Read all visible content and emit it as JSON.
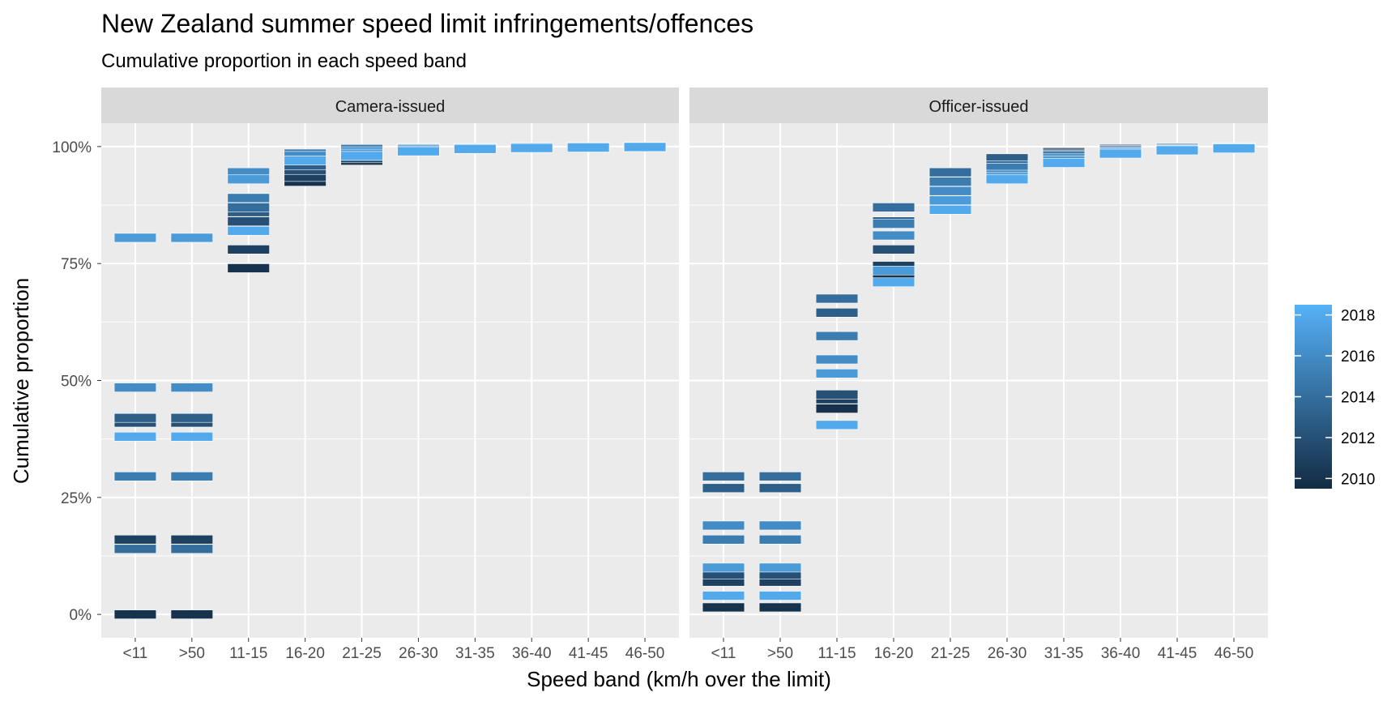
{
  "chart_data": {
    "type": "heatmap",
    "title": "New Zealand summer speed limit infringements/offences",
    "subtitle": "Cumulative proportion in each speed band",
    "xlabel": "Speed band (km/h over the limit)",
    "ylabel": "Cumulative proportion",
    "categories": [
      "<11",
      ">50",
      "11-15",
      "16-20",
      "21-25",
      "26-30",
      "31-35",
      "36-40",
      "41-45",
      "46-50"
    ],
    "y_ticks": [
      0,
      25,
      50,
      75,
      100
    ],
    "y_tick_labels": [
      "0%",
      "25%",
      "50%",
      "75%",
      "100%"
    ],
    "ylim": [
      -5,
      105
    ],
    "grid": true,
    "legend": {
      "position": "right",
      "title": "",
      "type": "colorbar",
      "min": 2009.5,
      "max": 2018.5,
      "ticks": [
        2010,
        2012,
        2014,
        2016,
        2018
      ],
      "low_color": "#132B43",
      "high_color": "#56B1F7"
    },
    "panels": [
      {
        "strip": "Camera-issued",
        "years": [
          2010,
          2011,
          2012,
          2013,
          2014,
          2015,
          2016,
          2017,
          2018
        ],
        "values": {
          "<11": [
            0,
            16,
            41,
            42,
            14,
            29.5,
            48.5,
            80.5,
            38
          ],
          ">50": [
            0,
            16,
            41,
            42,
            14,
            29.5,
            48.5,
            80.5,
            38
          ],
          "11-15": [
            74,
            78,
            84,
            86,
            87,
            89,
            94.5,
            93,
            82
          ],
          "16-20": [
            92.5,
            93.5,
            95,
            96,
            97,
            98.5,
            98,
            97,
            97
          ],
          "21-25": [
            97,
            97.5,
            98,
            99,
            99.5,
            99.5,
            99,
            98.5,
            98
          ],
          "26-30": [
            99,
            99.2,
            99.5,
            99.7,
            99.7,
            99.6,
            99.5,
            99.2,
            99
          ],
          "31-35": [
            99.6,
            99.6,
            99.7,
            99.8,
            99.8,
            99.8,
            99.7,
            99.6,
            99.5
          ],
          "36-40": [
            99.8,
            99.8,
            99.8,
            99.9,
            99.9,
            99.9,
            99.8,
            99.8,
            99.7
          ],
          "41-45": [
            99.9,
            99.9,
            99.9,
            99.9,
            99.9,
            99.9,
            99.9,
            99.9,
            99.8
          ],
          "46-50": [
            99.9,
            99.9,
            99.9,
            99.9,
            100,
            100,
            99.9,
            99.9,
            99.9
          ]
        }
      },
      {
        "strip": "Officer-issued",
        "years": [
          2010,
          2011,
          2012,
          2013,
          2014,
          2015,
          2016,
          2017,
          2018
        ],
        "values": {
          "<11": [
            1.5,
            7,
            8.5,
            27,
            29.5,
            16,
            19,
            10,
            4
          ],
          ">50": [
            1.5,
            7,
            8.5,
            27,
            29.5,
            16,
            19,
            10,
            4
          ],
          "11-15": [
            44,
            46,
            47,
            64.5,
            67.5,
            59.5,
            54.5,
            51.5,
            40.5
          ],
          "16-20": [
            72.5,
            74.5,
            78,
            84,
            87,
            83.5,
            81,
            73.5,
            71
          ],
          "21-25": [
            89,
            90,
            91.5,
            93.5,
            94.5,
            92.5,
            90.5,
            88.5,
            86.5
          ],
          "26-30": [
            97,
            97.5,
            96.5,
            97.5,
            96,
            95.5,
            94,
            93.5,
            93
          ],
          "31-35": [
            98.5,
            98.8,
            98.5,
            98.2,
            98,
            97.5,
            97.5,
            97,
            96.5
          ],
          "36-40": [
            99.5,
            99.5,
            99.3,
            99.3,
            99,
            99,
            99,
            98.7,
            98.5
          ],
          "41-45": [
            99.8,
            99.8,
            99.7,
            99.7,
            99.5,
            99.5,
            99.5,
            99.3,
            99.2
          ],
          "46-50": [
            99.9,
            99.9,
            99.9,
            99.9,
            99.8,
            99.8,
            99.8,
            99.7,
            99.6
          ]
        }
      }
    ]
  }
}
